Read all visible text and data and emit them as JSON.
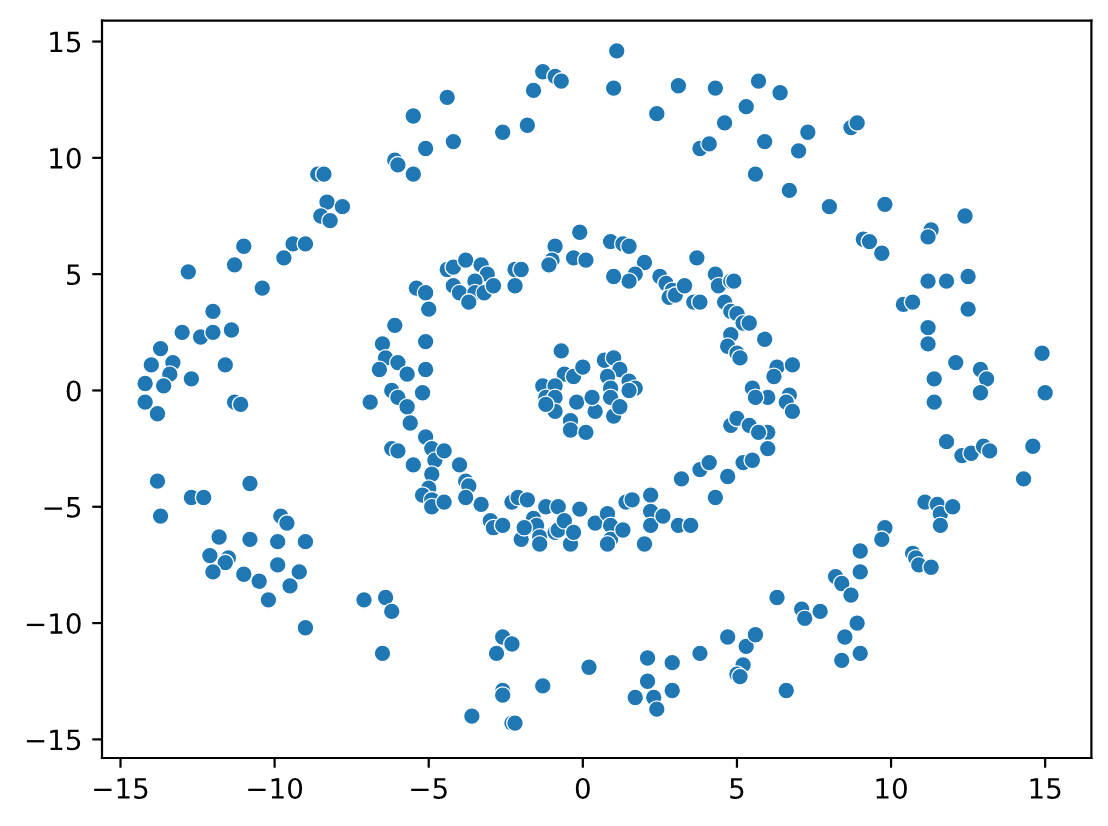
{
  "chart_data": {
    "type": "scatter",
    "color": "#1f77b4",
    "marker": "circle",
    "x": [
      -5.5,
      -5.1,
      -6.1,
      -6.0,
      -5.5,
      -8.6,
      -8.4,
      -8.3,
      -7.8,
      -8.5,
      -8.2,
      -11.0,
      -9.4,
      -9.0,
      -9.7,
      -11.3,
      -12.8,
      -10.4,
      -12.0,
      -13.0,
      -12.4,
      -12.0,
      -11.4,
      -13.7,
      -13.3,
      -14.0,
      -13.4,
      -12.7,
      -11.6,
      -14.2,
      -13.6,
      -14.2,
      -13.8,
      -11.3,
      -11.1,
      -13.8,
      -13.7,
      -12.7,
      -12.3,
      -10.8,
      -9.8,
      -9.6,
      -11.8,
      -12.1,
      -11.5,
      -11.6,
      -12.0,
      -10.8,
      -9.9,
      -9.0,
      -9.9,
      -9.2,
      -11.0,
      -10.5,
      -9.5,
      -10.2,
      -9.0,
      -7.1,
      -6.4,
      -6.2,
      -6.5,
      -2.6,
      -2.8,
      -2.3,
      -2.6,
      -2.6,
      -3.6,
      -2.3,
      -2.2,
      -1.3,
      0.2,
      2.1,
      2.9,
      2.1,
      1.7,
      2.3,
      2.4,
      2.9,
      3.8,
      4.7,
      5.3,
      5.6,
      5.2,
      5.0,
      5.1,
      -4.4,
      -4.2,
      -2.6,
      -1.8,
      -1.6,
      -1.3,
      -0.9,
      -0.7,
      1.1,
      1.0,
      2.4,
      3.1,
      4.3,
      5.7,
      5.3,
      4.6,
      3.8,
      4.1,
      5.9,
      5.6,
      6.4,
      7.3,
      7.0,
      6.7,
      8.0,
      8.7,
      8.9,
      9.8,
      9.1,
      9.3,
      9.7,
      11.3,
      11.2,
      12.4,
      11.2,
      11.8,
      12.5,
      10.4,
      10.7,
      12.5,
      11.2,
      11.2,
      12.1,
      11.4,
      12.9,
      13.1,
      14.9,
      15.0,
      12.9,
      11.4,
      11.8,
      12.3,
      12.6,
      13.0,
      13.2,
      14.6,
      14.3,
      11.1,
      11.5,
      11.6,
      12.0,
      11.6,
      9.8,
      9.7,
      9.0,
      9.0,
      10.7,
      10.8,
      10.9,
      11.3,
      8.2,
      8.4,
      8.7,
      6.3,
      7.1,
      7.2,
      7.7,
      8.9,
      8.5,
      9.0,
      8.4,
      6.6,
      -5.4,
      -5.1,
      -5.0,
      -6.1,
      -6.5,
      -5.1,
      -6.4,
      -6.0,
      -6.6,
      -5.7,
      -5.1,
      -6.2,
      -5.2,
      -6.9,
      -6.0,
      -5.7,
      -5.6,
      -5.1,
      -6.2,
      -6.0,
      -5.5,
      -4.9,
      -4.8,
      -4.9,
      -5.0,
      -5.2,
      -4.9,
      -4.9,
      -4.4,
      -4.2,
      -3.8,
      -3.3,
      -3.1,
      -4.2,
      -4.0,
      -3.5,
      -3.5,
      -3.2,
      -2.9,
      -3.7,
      -2.2,
      -2.0,
      -2.2,
      -0.9,
      -1.0,
      -1.1,
      -0.3,
      -0.1,
      0.1,
      0.9,
      1.3,
      1.5,
      2.0,
      1.7,
      1.5,
      1.0,
      2.5,
      2.7,
      2.9,
      2.8,
      3.0,
      3.3,
      3.7,
      3.6,
      3.8,
      4.3,
      4.4,
      4.8,
      4.9,
      4.6,
      4.8,
      5.0,
      5.2,
      5.4,
      5.9,
      4.8,
      4.7,
      5.0,
      5.1,
      6.3,
      6.2,
      6.8,
      6.0,
      6.7,
      6.6,
      6.8,
      6.0,
      -4.5,
      -4.5,
      -4.0,
      -3.8,
      -3.7,
      -3.8,
      -3.3,
      -3.0,
      -2.9,
      -2.6,
      -2.3,
      -2.1,
      -1.8,
      -2.0,
      -1.6,
      -1.5,
      -1.9,
      -1.4,
      -1.4,
      -1.2,
      -0.9,
      -0.8,
      -0.8,
      -0.6,
      -0.4,
      -0.3,
      -0.1,
      0.4,
      0.8,
      0.9,
      0.9,
      0.8,
      1.3,
      1.4,
      1.6,
      2.0,
      2.2,
      2.2,
      2.2,
      2.6,
      3.1,
      3.5,
      3.2,
      3.8,
      4.1,
      4.3,
      4.7,
      5.2,
      5.5,
      4.8,
      5.0,
      5.4,
      5.7,
      6.0,
      5.5,
      5.6,
      -0.7,
      -0.6,
      -1.3,
      -0.9,
      -0.3,
      0.0,
      0.7,
      1.0,
      1.2,
      0.8,
      1.5,
      1.7,
      0.9,
      -1.2,
      -0.9,
      -0.9,
      -0.2,
      -0.4,
      -0.4,
      0.1,
      0.4,
      0.3,
      0.9,
      1.0,
      1.2,
      1.5,
      -1.2
    ],
    "values": [
      11.8,
      10.4,
      9.9,
      9.7,
      9.3,
      9.3,
      9.3,
      8.1,
      7.9,
      7.5,
      7.3,
      6.2,
      6.3,
      6.3,
      5.7,
      5.4,
      5.1,
      4.4,
      3.4,
      2.5,
      2.3,
      2.5,
      2.6,
      1.8,
      1.2,
      1.1,
      0.7,
      0.5,
      1.1,
      0.3,
      0.2,
      -0.5,
      -1.0,
      -0.5,
      -0.6,
      -3.9,
      -5.4,
      -4.6,
      -4.6,
      -4.0,
      -5.4,
      -5.7,
      -6.3,
      -7.1,
      -7.2,
      -7.4,
      -7.8,
      -6.4,
      -6.5,
      -6.5,
      -7.5,
      -7.8,
      -7.9,
      -8.2,
      -8.4,
      -9.0,
      -10.2,
      -9.0,
      -8.9,
      -9.5,
      -11.3,
      -10.6,
      -11.3,
      -10.9,
      -12.9,
      -13.1,
      -14.0,
      -14.3,
      -14.3,
      -12.7,
      -11.9,
      -11.5,
      -11.7,
      -12.5,
      -13.2,
      -13.2,
      -13.7,
      -12.9,
      -11.3,
      -10.6,
      -11.0,
      -10.5,
      -11.8,
      -12.2,
      -12.3,
      12.6,
      10.7,
      11.1,
      11.4,
      12.9,
      13.7,
      13.5,
      13.3,
      14.6,
      13.0,
      11.9,
      13.1,
      13.0,
      13.3,
      12.2,
      11.5,
      10.4,
      10.6,
      10.7,
      9.3,
      12.8,
      11.1,
      10.3,
      8.6,
      7.9,
      11.3,
      11.5,
      8.0,
      6.5,
      6.4,
      5.9,
      6.9,
      6.6,
      7.5,
      4.7,
      4.7,
      4.9,
      3.7,
      3.8,
      3.5,
      2.7,
      2.0,
      1.2,
      0.5,
      0.9,
      0.5,
      1.6,
      -0.1,
      -0.1,
      -0.5,
      -2.2,
      -2.8,
      -2.7,
      -2.4,
      -2.6,
      -2.4,
      -3.8,
      -4.8,
      -4.9,
      -5.3,
      -5.0,
      -5.8,
      -5.9,
      -6.4,
      -6.9,
      -7.8,
      -7.0,
      -7.2,
      -7.5,
      -7.6,
      -8.0,
      -8.3,
      -8.8,
      -8.9,
      -9.4,
      -9.8,
      -9.5,
      -10.0,
      -10.6,
      -11.3,
      -11.6,
      -12.9,
      4.4,
      4.2,
      3.5,
      2.8,
      2.0,
      2.1,
      1.4,
      1.2,
      0.9,
      0.7,
      0.9,
      0.0,
      -0.1,
      -0.5,
      -0.3,
      -0.7,
      -1.4,
      -2.0,
      -2.5,
      -2.6,
      -3.2,
      -2.5,
      -3.0,
      -3.6,
      -4.2,
      -4.5,
      -4.7,
      -5.0,
      5.2,
      5.3,
      5.6,
      5.4,
      5.0,
      4.5,
      4.2,
      4.7,
      4.2,
      4.2,
      4.5,
      3.8,
      5.2,
      5.2,
      4.5,
      6.2,
      5.6,
      5.4,
      5.7,
      6.8,
      5.6,
      6.4,
      6.3,
      6.2,
      5.5,
      5.0,
      4.7,
      4.9,
      4.9,
      4.6,
      4.3,
      4.0,
      4.1,
      4.5,
      5.7,
      3.8,
      3.8,
      5.0,
      4.5,
      4.7,
      4.7,
      3.8,
      3.4,
      3.3,
      2.9,
      2.9,
      2.2,
      2.4,
      1.9,
      1.6,
      1.4,
      1.0,
      0.6,
      1.1,
      -0.3,
      -0.2,
      -0.5,
      -0.9,
      -1.8,
      -2.6,
      -4.8,
      -3.2,
      -3.9,
      -4.1,
      -4.6,
      -4.9,
      -5.6,
      -5.9,
      -5.8,
      -4.8,
      -4.6,
      -4.7,
      -6.4,
      -5.5,
      -5.8,
      -5.9,
      -6.3,
      -6.6,
      -5.0,
      -6.1,
      -6.0,
      -5.0,
      -5.6,
      -6.6,
      -6.1,
      -5.1,
      -5.7,
      -5.3,
      -5.8,
      -6.4,
      -6.6,
      -6.0,
      -4.8,
      -4.7,
      -6.6,
      -4.5,
      -5.2,
      -5.8,
      -5.4,
      -5.8,
      -5.8,
      -3.8,
      -3.4,
      -3.1,
      -4.6,
      -3.7,
      -3.1,
      -3.0,
      -1.5,
      -1.2,
      -1.5,
      -1.8,
      -2.5,
      0.1,
      -0.3,
      1.7,
      0.7,
      0.2,
      0.2,
      0.6,
      1.0,
      1.3,
      1.4,
      0.9,
      0.6,
      0.4,
      0.1,
      0.1,
      -0.3,
      -0.3,
      -0.9,
      -0.5,
      -1.3,
      -1.7,
      -1.8,
      -0.9,
      -0.3,
      -0.3,
      -1.1,
      -0.7,
      0.0,
      -0.6
    ],
    "xlim": [
      -15.6,
      16.5
    ],
    "ylim": [
      -15.8,
      15.9
    ],
    "xticks": [
      -15,
      -10,
      -5,
      0,
      5,
      10,
      15
    ],
    "yticks": [
      -15,
      -10,
      -5,
      0,
      5,
      10,
      15
    ]
  }
}
